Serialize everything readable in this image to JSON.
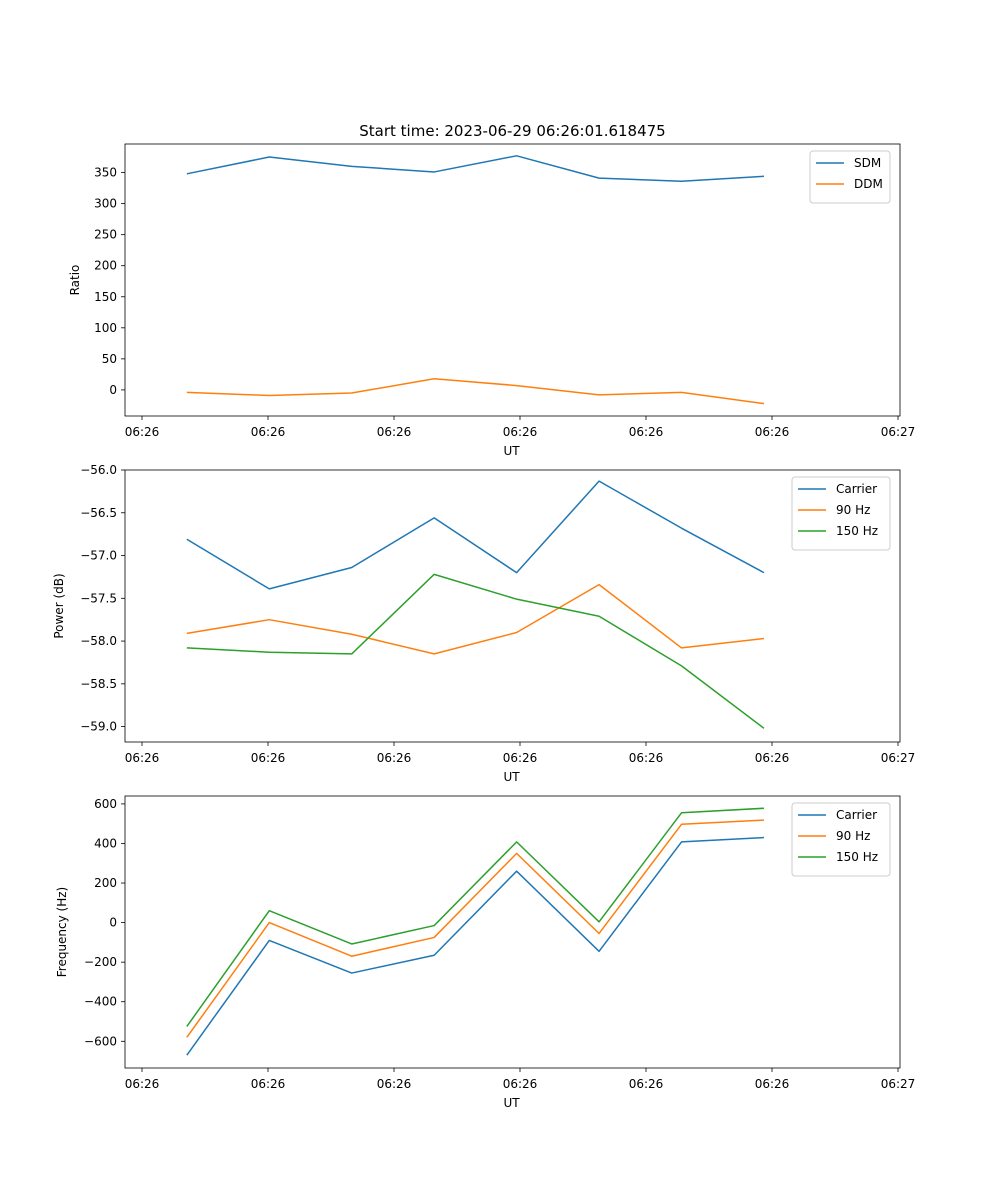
{
  "chart_data": [
    {
      "type": "line",
      "title": "Start time: 2023-06-29 06:26:01.618475",
      "xlabel": "UT",
      "ylabel": "Ratio",
      "x_ticks": [
        "06:26",
        "06:26",
        "06:26",
        "06:26",
        "06:26",
        "06:26",
        "06:27"
      ],
      "x_index": [
        0,
        1,
        2,
        3,
        4,
        5,
        6,
        7
      ],
      "xlim": [
        -0.75,
        8.65
      ],
      "ylim": [
        -42,
        396
      ],
      "yticks": [
        0,
        50,
        100,
        150,
        200,
        250,
        300,
        350
      ],
      "y_tick_labels": [
        "0",
        "50",
        "100",
        "150",
        "200",
        "250",
        "300",
        "350"
      ],
      "legend": "upper right",
      "grid": false,
      "series": [
        {
          "name": "SDM",
          "color": "#1f77b4",
          "values": [
            348,
            375,
            360,
            351,
            377,
            341,
            336,
            344
          ]
        },
        {
          "name": "DDM",
          "color": "#ff7f0e",
          "values": [
            -4,
            -9,
            -5,
            18,
            7,
            -8,
            -4,
            -22
          ]
        }
      ]
    },
    {
      "type": "line",
      "title": "",
      "xlabel": "UT",
      "ylabel": "Power (dB)",
      "x_ticks": [
        "06:26",
        "06:26",
        "06:26",
        "06:26",
        "06:26",
        "06:26",
        "06:27"
      ],
      "x_index": [
        0,
        1,
        2,
        3,
        4,
        5,
        6,
        7
      ],
      "xlim": [
        -0.75,
        8.65
      ],
      "ylim": [
        -59.18,
        -56.0
      ],
      "yticks": [
        -59.0,
        -58.5,
        -58.0,
        -57.5,
        -57.0,
        -56.5,
        -56.0
      ],
      "y_tick_labels": [
        "−59.0",
        "−58.5",
        "−58.0",
        "−57.5",
        "−57.0",
        "−56.5",
        "−56.0"
      ],
      "legend": "upper right",
      "grid": false,
      "series": [
        {
          "name": "Carrier",
          "color": "#1f77b4",
          "values": [
            -56.81,
            -57.39,
            -57.14,
            -56.56,
            -57.2,
            -56.13,
            -56.68,
            -57.2
          ]
        },
        {
          "name": "90 Hz",
          "color": "#ff7f0e",
          "values": [
            -57.91,
            -57.75,
            -57.92,
            -58.15,
            -57.9,
            -57.34,
            -58.08,
            -57.97
          ]
        },
        {
          "name": "150 Hz",
          "color": "#2ca02c",
          "values": [
            -58.08,
            -58.13,
            -58.15,
            -57.22,
            -57.51,
            -57.71,
            -58.29,
            -59.02
          ]
        }
      ]
    },
    {
      "type": "line",
      "title": "",
      "xlabel": "UT",
      "ylabel": "Frequency (Hz)",
      "x_ticks": [
        "06:26",
        "06:26",
        "06:26",
        "06:26",
        "06:26",
        "06:26",
        "06:27"
      ],
      "x_index": [
        0,
        1,
        2,
        3,
        4,
        5,
        6,
        7
      ],
      "xlim": [
        -0.75,
        8.65
      ],
      "ylim": [
        -735,
        640
      ],
      "yticks": [
        -600,
        -400,
        -200,
        0,
        200,
        400,
        600
      ],
      "y_tick_labels": [
        "−600",
        "−400",
        "−200",
        "0",
        "200",
        "400",
        "600"
      ],
      "legend": "upper right",
      "grid": false,
      "series": [
        {
          "name": "Carrier",
          "color": "#1f77b4",
          "values": [
            -670,
            -90,
            -255,
            -165,
            260,
            -145,
            408,
            430
          ]
        },
        {
          "name": "90 Hz",
          "color": "#ff7f0e",
          "values": [
            -580,
            0,
            -170,
            -75,
            350,
            -55,
            497,
            518
          ]
        },
        {
          "name": "150 Hz",
          "color": "#2ca02c",
          "values": [
            -525,
            60,
            -108,
            -15,
            408,
            4,
            555,
            578
          ]
        }
      ]
    }
  ]
}
